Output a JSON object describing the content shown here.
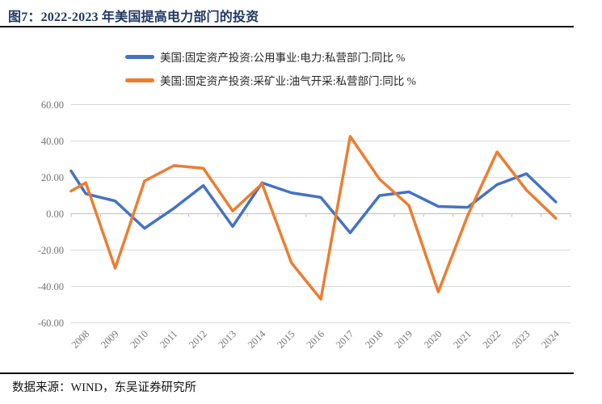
{
  "header": {
    "title": "图7：2022-2023 年美国提高电力部门的投资"
  },
  "footer": {
    "source": "数据来源：WIND，东吴证券研究所"
  },
  "colors": {
    "title_navy": "#1F3864",
    "series_power_blue": "#4472C4",
    "series_oilgas_orange": "#ED7D31",
    "gridline": "#D9D9D9",
    "axis": "#BFBFBF",
    "tick_label_gray": "#737373"
  },
  "chart_data": {
    "type": "line",
    "title": "图7：2022-2023 年美国提高电力部门的投资",
    "categories": [
      "2008",
      "2009",
      "2010",
      "2011",
      "2012",
      "2013",
      "2014",
      "2015",
      "2016",
      "2017",
      "2018",
      "2019",
      "2020",
      "2021",
      "2022",
      "2023",
      "2024"
    ],
    "series": [
      {
        "name": "美国:固定资产投资:公用事业:电力:私营部门:同比 %",
        "color": "#4472C4",
        "values": [
          11,
          7,
          -8,
          3,
          15.5,
          -7,
          17,
          11.5,
          9,
          -10.5,
          10,
          12,
          4,
          3.5,
          16,
          22,
          6.5
        ],
        "clipped_left_edge_value": 23.5
      },
      {
        "name": "美国:固定资产投资:采矿业:油气开采:私营部门:同比 %",
        "color": "#ED7D31",
        "values": [
          17,
          -30,
          18,
          26.5,
          25,
          1.5,
          16.5,
          -27,
          -47,
          42.5,
          19,
          4.5,
          -43,
          -1,
          34,
          13,
          -2.5
        ],
        "clipped_left_edge_value": 12.5
      }
    ],
    "ylim": [
      -60,
      60
    ],
    "ytick_step": 20,
    "ytick_labels": [
      "60.00",
      "40.00",
      "20.00",
      "0.00",
      "-20.00",
      "-40.00",
      "-60.00"
    ],
    "xlabel": "",
    "ylabel": "",
    "grid": "horizontal",
    "legend_position": "top-center"
  }
}
